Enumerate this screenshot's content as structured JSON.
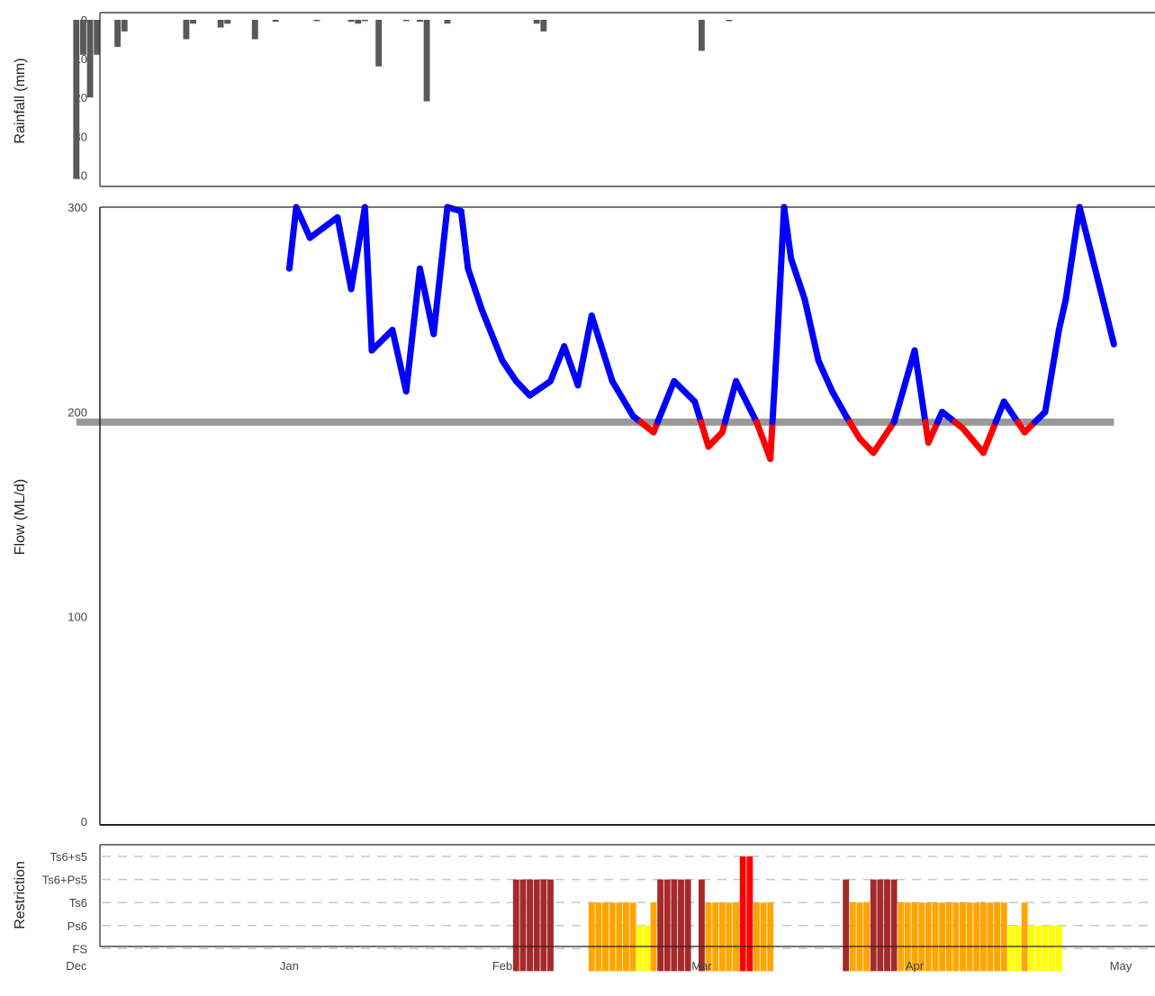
{
  "chart_data": [
    {
      "type": "bar",
      "panel": "rainfall",
      "ylabel": "Rainfall (mm)",
      "y_reversed": true,
      "ylim": [
        0,
        42
      ],
      "yticks": [
        0,
        10,
        20,
        30,
        40
      ],
      "color": "#595959",
      "x": [
        "2023-12-01",
        "2023-12-02",
        "2023-12-03",
        "2023-12-04",
        "2023-12-07",
        "2023-12-08",
        "2023-12-17",
        "2023-12-18",
        "2023-12-22",
        "2023-12-23",
        "2023-12-27",
        "2023-12-30",
        "2024-01-05",
        "2024-01-10",
        "2024-01-11",
        "2024-01-12",
        "2024-01-14",
        "2024-01-18",
        "2024-01-20",
        "2024-01-21",
        "2024-01-24",
        "2024-02-06",
        "2024-02-07",
        "2024-03-01",
        "2024-03-05"
      ],
      "values": [
        41,
        9,
        20,
        9,
        7,
        3,
        5,
        1,
        2,
        1,
        5,
        0.5,
        0.3,
        0.5,
        1,
        0.3,
        12,
        0.3,
        0.5,
        21,
        1,
        1,
        3,
        8,
        0.3
      ]
    },
    {
      "type": "line",
      "panel": "flow",
      "ylabel": "Flow (ML/d)",
      "ylim": [
        0,
        300
      ],
      "yticks": [
        0,
        100,
        200,
        300
      ],
      "threshold": {
        "value": 195,
        "color": "#999999"
      },
      "colors": {
        "above": "#0000ff",
        "below": "#ff0000"
      },
      "x": [
        "2024-01-01",
        "2024-01-02",
        "2024-01-04",
        "2024-01-06",
        "2024-01-08",
        "2024-01-10",
        "2024-01-12",
        "2024-01-13",
        "2024-01-16",
        "2024-01-18",
        "2024-01-20",
        "2024-01-22",
        "2024-01-24",
        "2024-01-26",
        "2024-01-27",
        "2024-01-29",
        "2024-02-01",
        "2024-02-03",
        "2024-02-05",
        "2024-02-08",
        "2024-02-10",
        "2024-02-12",
        "2024-02-14",
        "2024-02-17",
        "2024-02-20",
        "2024-02-23",
        "2024-02-26",
        "2024-02-29",
        "2024-03-02",
        "2024-03-04",
        "2024-03-06",
        "2024-03-09",
        "2024-03-11",
        "2024-03-12",
        "2024-03-13",
        "2024-03-14",
        "2024-03-16",
        "2024-03-18",
        "2024-03-20",
        "2024-03-22",
        "2024-03-24",
        "2024-03-26",
        "2024-03-29",
        "2024-04-01",
        "2024-04-03",
        "2024-04-05",
        "2024-04-08",
        "2024-04-11",
        "2024-04-14",
        "2024-04-17",
        "2024-04-20",
        "2024-04-22",
        "2024-04-23",
        "2024-04-25",
        "2024-04-28",
        "2024-04-30"
      ],
      "values": [
        270,
        300,
        285,
        290,
        295,
        260,
        300,
        230,
        240,
        210,
        270,
        238,
        300,
        298,
        270,
        250,
        225,
        215,
        208,
        215,
        232,
        213,
        247,
        215,
        198,
        190,
        215,
        205,
        183,
        190,
        215,
        195,
        177,
        235,
        300,
        275,
        255,
        225,
        210,
        198,
        187,
        180,
        195,
        230,
        185,
        200,
        192,
        180,
        205,
        190,
        200,
        240,
        255,
        300,
        260,
        233
      ]
    },
    {
      "type": "bar",
      "panel": "restriction",
      "ylabel": "Restriction",
      "categories": [
        "FS",
        "Ps6",
        "Ts6",
        "Ts6+Ps5",
        "Ts6+s5"
      ],
      "level_colors": {
        "FS": "#ffff00",
        "Ps6": "#ffff00",
        "Ts6": "#ffa500",
        "Ts6+Ps5": "#a52a2a",
        "Ts6+s5": "#ff0000"
      },
      "grid": true,
      "x": [
        "2024-02-03",
        "2024-02-04",
        "2024-02-05",
        "2024-02-06",
        "2024-02-07",
        "2024-02-08",
        "2024-02-14",
        "2024-02-15",
        "2024-02-16",
        "2024-02-17",
        "2024-02-18",
        "2024-02-19",
        "2024-02-20",
        "2024-02-21",
        "2024-02-22",
        "2024-02-23",
        "2024-02-24",
        "2024-02-25",
        "2024-02-26",
        "2024-02-27",
        "2024-02-28",
        "2024-03-01",
        "2024-03-02",
        "2024-03-03",
        "2024-03-04",
        "2024-03-05",
        "2024-03-06",
        "2024-03-07",
        "2024-03-08",
        "2024-03-09",
        "2024-03-10",
        "2024-03-11",
        "2024-03-22",
        "2024-03-23",
        "2024-03-24",
        "2024-03-25",
        "2024-03-26",
        "2024-03-27",
        "2024-03-28",
        "2024-03-29",
        "2024-03-30",
        "2024-03-31",
        "2024-04-01",
        "2024-04-02",
        "2024-04-03",
        "2024-04-04",
        "2024-04-05",
        "2024-04-06",
        "2024-04-07",
        "2024-04-08",
        "2024-04-09",
        "2024-04-10",
        "2024-04-11",
        "2024-04-12",
        "2024-04-13",
        "2024-04-14",
        "2024-04-15",
        "2024-04-16",
        "2024-04-17",
        "2024-04-18",
        "2024-04-19",
        "2024-04-20",
        "2024-04-21",
        "2024-04-22"
      ],
      "levels": [
        "Ts6+Ps5",
        "Ts6+Ps5",
        "Ts6+Ps5",
        "Ts6+Ps5",
        "Ts6+Ps5",
        "Ts6+Ps5",
        "Ts6",
        "Ts6",
        "Ts6",
        "Ts6",
        "Ts6",
        "Ts6",
        "Ts6",
        "Ps6",
        "Ps6",
        "Ts6",
        "Ts6+Ps5",
        "Ts6+Ps5",
        "Ts6+Ps5",
        "Ts6+Ps5",
        "Ts6+Ps5",
        "Ts6+Ps5",
        "Ts6",
        "Ts6",
        "Ts6",
        "Ts6",
        "Ts6",
        "Ts6+s5",
        "Ts6+s5",
        "Ts6",
        "Ts6",
        "Ts6",
        "Ts6+Ps5",
        "Ts6",
        "Ts6",
        "Ts6",
        "Ts6+Ps5",
        "Ts6+Ps5",
        "Ts6+Ps5",
        "Ts6+Ps5",
        "Ts6",
        "Ts6",
        "Ts6",
        "Ts6",
        "Ts6",
        "Ts6",
        "Ts6",
        "Ts6",
        "Ts6",
        "Ts6",
        "Ts6",
        "Ts6",
        "Ts6",
        "Ts6",
        "Ts6",
        "Ts6",
        "Ps6",
        "Ps6",
        "Ts6",
        "Ps6",
        "Ps6",
        "Ps6",
        "Ps6",
        "Ps6"
      ]
    }
  ],
  "x_axis": {
    "domain": [
      "2023-11-25",
      "2024-05-01"
    ],
    "ticks": [
      {
        "label": "Dec",
        "date": "2023-12-01"
      },
      {
        "label": "Jan",
        "date": "2024-01-01"
      },
      {
        "label": "Feb",
        "date": "2024-02-01"
      },
      {
        "label": "Mar",
        "date": "2024-03-01"
      },
      {
        "label": "Apr",
        "date": "2024-04-01"
      },
      {
        "label": "May",
        "date": "2024-05-01"
      }
    ]
  }
}
